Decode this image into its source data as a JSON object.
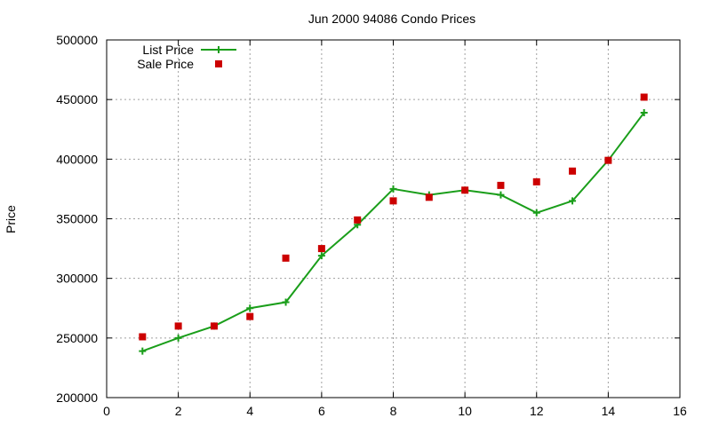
{
  "chart_data": {
    "type": "line",
    "title": "Jun 2000 94086 Condo Prices",
    "xlabel": "",
    "ylabel": "Price",
    "xlim": [
      0,
      16
    ],
    "ylim": [
      200000,
      500000
    ],
    "x_ticks": [
      "0",
      "2",
      "4",
      "6",
      "8",
      "10",
      "12",
      "14",
      "16"
    ],
    "y_ticks": [
      "200000",
      "250000",
      "300000",
      "350000",
      "400000",
      "450000",
      "500000"
    ],
    "grid": true,
    "legend_position": "top-left",
    "series": [
      {
        "name": "List Price",
        "style": "linespoints",
        "marker": "plus",
        "color": "#1a9e1a",
        "x": [
          1,
          2,
          3,
          4,
          5,
          6,
          7,
          8,
          9,
          10,
          11,
          12,
          13,
          14,
          15
        ],
        "y": [
          239000,
          250000,
          260000,
          275000,
          280000,
          319000,
          345000,
          375000,
          370000,
          374000,
          370000,
          355000,
          365000,
          399000,
          439000
        ]
      },
      {
        "name": "Sale Price",
        "style": "points",
        "marker": "square",
        "color": "#cc0000",
        "x": [
          1,
          2,
          3,
          4,
          5,
          6,
          7,
          8,
          9,
          10,
          11,
          12,
          13,
          14,
          15
        ],
        "y": [
          251000,
          260000,
          260000,
          268000,
          317000,
          325000,
          349000,
          365000,
          368000,
          374000,
          378000,
          381000,
          390000,
          399000,
          452000
        ]
      }
    ]
  }
}
